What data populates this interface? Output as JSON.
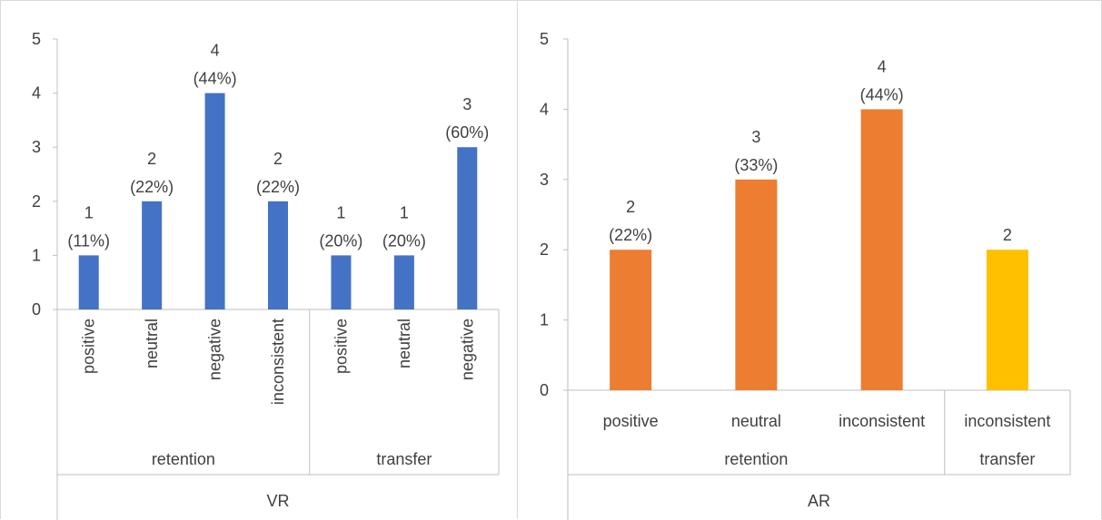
{
  "chart_data": [
    {
      "type": "bar",
      "ylim": [
        0,
        5
      ],
      "yticks": [
        "0",
        "1",
        "2",
        "3",
        "4",
        "5"
      ],
      "ytick_values": [
        0,
        1,
        2,
        3,
        4,
        5
      ],
      "categories": [
        "positive",
        "neutral",
        "negative",
        "inconsistent",
        "positive",
        "neutral",
        "negative"
      ],
      "values": [
        1,
        2,
        4,
        2,
        1,
        1,
        3
      ],
      "labels": [
        [
          "1",
          "(11%)"
        ],
        [
          "2",
          "(22%)"
        ],
        [
          "4",
          "(44%)"
        ],
        [
          "2",
          "(22%)"
        ],
        [
          "1",
          "(20%)"
        ],
        [
          "1",
          "(20%)"
        ],
        [
          "3",
          "(60%)"
        ]
      ],
      "colors": [
        "#4472C4",
        "#4472C4",
        "#4472C4",
        "#4472C4",
        "#4472C4",
        "#4472C4",
        "#4472C4"
      ],
      "groups": [
        {
          "label": "retention",
          "count": 4
        },
        {
          "label": "transfer",
          "count": 3
        }
      ],
      "supergroup": "VR",
      "category_orientation": "vertical",
      "grid": false
    },
    {
      "type": "bar",
      "ylim": [
        0,
        5
      ],
      "yticks": [
        "0",
        "1",
        "2",
        "3",
        "4",
        "5"
      ],
      "ytick_values": [
        0,
        1,
        2,
        3,
        4,
        5
      ],
      "categories": [
        "positive",
        "neutral",
        "inconsistent",
        "inconsistent"
      ],
      "values": [
        2,
        3,
        4,
        2
      ],
      "labels": [
        [
          "2",
          "(22%)"
        ],
        [
          "3",
          "(33%)"
        ],
        [
          "4",
          "(44%)"
        ],
        [
          "2"
        ]
      ],
      "colors": [
        "#ED7D31",
        "#ED7D31",
        "#ED7D31",
        "#FFC000"
      ],
      "groups": [
        {
          "label": "retention",
          "count": 3
        },
        {
          "label": "transfer",
          "count": 1
        }
      ],
      "supergroup": "AR",
      "category_orientation": "horizontal",
      "grid": false
    }
  ]
}
